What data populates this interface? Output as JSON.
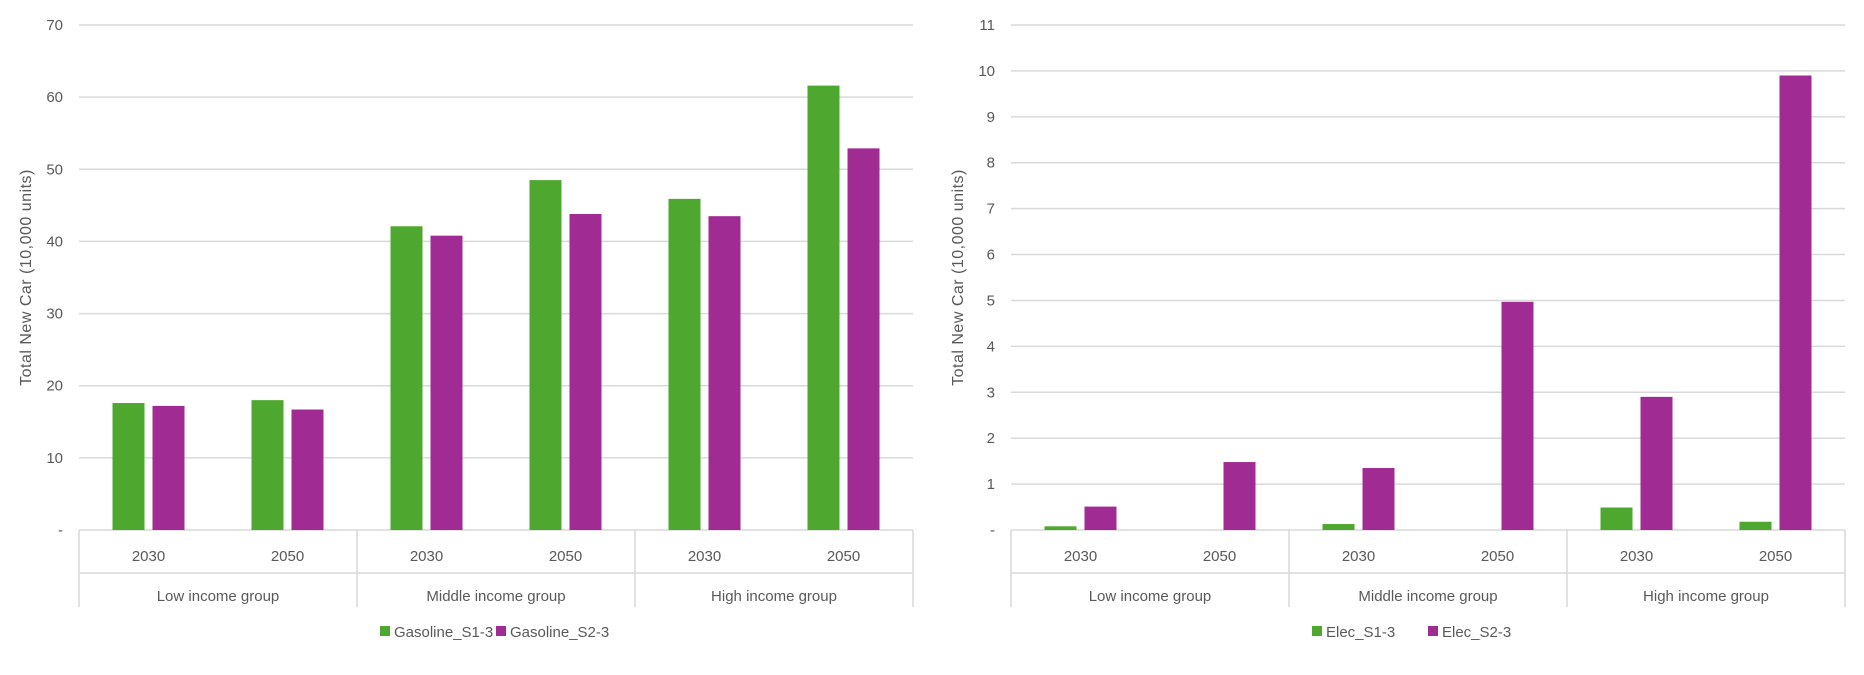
{
  "chart_data": [
    {
      "type": "bar",
      "title": "",
      "ylabel": "Total New Car (10,000 units)",
      "xlabel": "",
      "ylim": [
        0,
        70
      ],
      "yticks": [
        0,
        10,
        20,
        30,
        40,
        50,
        60,
        70
      ],
      "ytick_labels": [
        "-",
        "10",
        "20",
        "30",
        "40",
        "50",
        "60",
        "70"
      ],
      "grid": true,
      "legend": "bottom-center",
      "groups": [
        "Low income group",
        "Middle income group",
        "High income group"
      ],
      "categories": [
        "2030",
        "2050",
        "2030",
        "2050",
        "2030",
        "2050"
      ],
      "series": [
        {
          "name": "Gasoline_S1-3",
          "color": "#4ea72e",
          "values": [
            17.6,
            18.0,
            42.1,
            48.5,
            45.9,
            61.6
          ]
        },
        {
          "name": "Gasoline_S2-3",
          "color": "#a02b93",
          "values": [
            17.2,
            16.7,
            40.8,
            43.8,
            43.5,
            52.9
          ]
        }
      ]
    },
    {
      "type": "bar",
      "title": "",
      "ylabel": "Total New Car (10,000 units)",
      "xlabel": "",
      "ylim": [
        0,
        11
      ],
      "yticks": [
        0,
        1,
        2,
        3,
        4,
        5,
        6,
        7,
        8,
        9,
        10,
        11
      ],
      "ytick_labels": [
        "-",
        "1",
        "2",
        "3",
        "4",
        "5",
        "6",
        "7",
        "8",
        "9",
        "10",
        "11"
      ],
      "grid": true,
      "legend": "bottom-center",
      "groups": [
        "Low income group",
        "Middle income group",
        "High income group"
      ],
      "categories": [
        "2030",
        "2050",
        "2030",
        "2050",
        "2030",
        "2050"
      ],
      "series": [
        {
          "name": "Elec_S1-3",
          "color": "#4ea72e",
          "values": [
            0.08,
            0.0,
            0.13,
            0.0,
            0.49,
            0.18
          ]
        },
        {
          "name": "Elec_S2-3",
          "color": "#a02b93",
          "values": [
            0.51,
            1.48,
            1.35,
            4.97,
            2.9,
            9.9
          ]
        }
      ]
    }
  ]
}
